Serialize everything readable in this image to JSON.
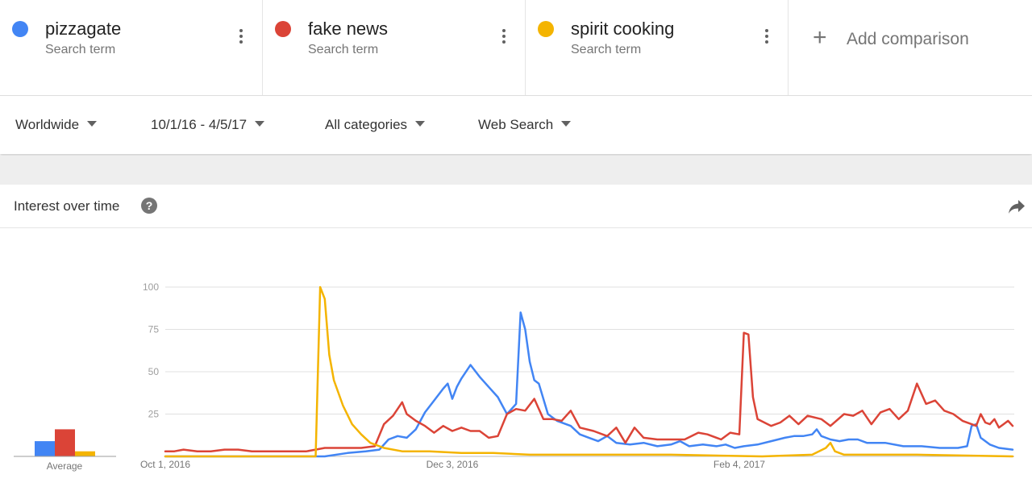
{
  "terms": [
    {
      "name": "pizzagate",
      "sub": "Search term",
      "color": "#4285f4"
    },
    {
      "name": "fake news",
      "sub": "Search term",
      "color": "#db4437"
    },
    {
      "name": "spirit cooking",
      "sub": "Search term",
      "color": "#f4b400"
    }
  ],
  "add_comparison": {
    "plus": "+",
    "label": "Add comparison"
  },
  "filters": {
    "region": "Worldwide",
    "date_range": "10/1/16 - 4/5/17",
    "category": "All categories",
    "search_type": "Web Search"
  },
  "card": {
    "title": "Interest over time",
    "help": "?"
  },
  "chart_data": {
    "type": "line",
    "y_ticks": [
      25,
      50,
      75,
      100
    ],
    "ylim": [
      0,
      100
    ],
    "x_tick_labels": [
      {
        "label": "Oct 1, 2016",
        "date": "2016-10-01"
      },
      {
        "label": "Dec 3, 2016",
        "date": "2016-12-03"
      },
      {
        "label": "Feb 4, 2017",
        "date": "2017-02-04"
      }
    ],
    "x_start": "2016-10-01",
    "x_end": "2017-04-05",
    "grid": true,
    "average": {
      "label": "Average",
      "values": [
        9,
        16,
        3
      ]
    },
    "series": [
      {
        "name": "pizzagate",
        "color": "#4285f4",
        "points": [
          [
            "2016-10-01",
            0
          ],
          [
            "2016-11-05",
            0
          ],
          [
            "2016-11-10",
            2
          ],
          [
            "2016-11-14",
            3
          ],
          [
            "2016-11-17",
            4
          ],
          [
            "2016-11-19",
            10
          ],
          [
            "2016-11-21",
            12
          ],
          [
            "2016-11-23",
            11
          ],
          [
            "2016-11-25",
            16
          ],
          [
            "2016-11-27",
            26
          ],
          [
            "2016-11-29",
            33
          ],
          [
            "2016-12-01",
            40
          ],
          [
            "2016-12-02",
            43
          ],
          [
            "2016-12-03",
            34
          ],
          [
            "2016-12-04",
            41
          ],
          [
            "2016-12-05",
            46
          ],
          [
            "2016-12-07",
            54
          ],
          [
            "2016-12-09",
            47
          ],
          [
            "2016-12-11",
            41
          ],
          [
            "2016-12-13",
            35
          ],
          [
            "2016-12-14",
            30
          ],
          [
            "2016-12-15",
            25
          ],
          [
            "2016-12-17",
            31
          ],
          [
            "2016-12-18",
            85
          ],
          [
            "2016-12-19",
            75
          ],
          [
            "2016-12-20",
            56
          ],
          [
            "2016-12-21",
            45
          ],
          [
            "2016-12-22",
            43
          ],
          [
            "2016-12-24",
            25
          ],
          [
            "2016-12-26",
            21
          ],
          [
            "2016-12-29",
            18
          ],
          [
            "2016-12-31",
            13
          ],
          [
            "2017-01-02",
            11
          ],
          [
            "2017-01-04",
            9
          ],
          [
            "2017-01-06",
            12
          ],
          [
            "2017-01-08",
            8
          ],
          [
            "2017-01-11",
            7
          ],
          [
            "2017-01-14",
            8
          ],
          [
            "2017-01-17",
            6
          ],
          [
            "2017-01-20",
            7
          ],
          [
            "2017-01-22",
            9
          ],
          [
            "2017-01-24",
            6
          ],
          [
            "2017-01-27",
            7
          ],
          [
            "2017-01-30",
            6
          ],
          [
            "2017-02-01",
            7
          ],
          [
            "2017-02-03",
            5
          ],
          [
            "2017-02-05",
            6
          ],
          [
            "2017-02-08",
            7
          ],
          [
            "2017-02-11",
            9
          ],
          [
            "2017-02-14",
            11
          ],
          [
            "2017-02-16",
            12
          ],
          [
            "2017-02-18",
            12
          ],
          [
            "2017-02-20",
            13
          ],
          [
            "2017-02-21",
            16
          ],
          [
            "2017-02-22",
            12
          ],
          [
            "2017-02-24",
            10
          ],
          [
            "2017-02-26",
            9
          ],
          [
            "2017-02-28",
            10
          ],
          [
            "2017-03-02",
            10
          ],
          [
            "2017-03-04",
            8
          ],
          [
            "2017-03-08",
            8
          ],
          [
            "2017-03-12",
            6
          ],
          [
            "2017-03-16",
            6
          ],
          [
            "2017-03-20",
            5
          ],
          [
            "2017-03-24",
            5
          ],
          [
            "2017-03-26",
            6
          ],
          [
            "2017-03-27",
            18
          ],
          [
            "2017-03-28",
            19
          ],
          [
            "2017-03-29",
            11
          ],
          [
            "2017-03-31",
            7
          ],
          [
            "2017-04-02",
            5
          ],
          [
            "2017-04-05",
            4
          ]
        ]
      },
      {
        "name": "fake news",
        "color": "#db4437",
        "points": [
          [
            "2016-10-01",
            3
          ],
          [
            "2016-10-03",
            3
          ],
          [
            "2016-10-05",
            4
          ],
          [
            "2016-10-08",
            3
          ],
          [
            "2016-10-11",
            3
          ],
          [
            "2016-10-14",
            4
          ],
          [
            "2016-10-17",
            4
          ],
          [
            "2016-10-20",
            3
          ],
          [
            "2016-10-24",
            3
          ],
          [
            "2016-10-28",
            3
          ],
          [
            "2016-11-01",
            3
          ],
          [
            "2016-11-05",
            5
          ],
          [
            "2016-11-09",
            5
          ],
          [
            "2016-11-13",
            5
          ],
          [
            "2016-11-16",
            6
          ],
          [
            "2016-11-18",
            19
          ],
          [
            "2016-11-20",
            24
          ],
          [
            "2016-11-22",
            32
          ],
          [
            "2016-11-23",
            25
          ],
          [
            "2016-11-25",
            21
          ],
          [
            "2016-11-27",
            18
          ],
          [
            "2016-11-29",
            14
          ],
          [
            "2016-12-01",
            18
          ],
          [
            "2016-12-03",
            15
          ],
          [
            "2016-12-05",
            17
          ],
          [
            "2016-12-07",
            15
          ],
          [
            "2016-12-09",
            15
          ],
          [
            "2016-12-11",
            11
          ],
          [
            "2016-12-13",
            12
          ],
          [
            "2016-12-15",
            25
          ],
          [
            "2016-12-17",
            28
          ],
          [
            "2016-12-19",
            27
          ],
          [
            "2016-12-21",
            34
          ],
          [
            "2016-12-23",
            22
          ],
          [
            "2016-12-25",
            22
          ],
          [
            "2016-12-27",
            21
          ],
          [
            "2016-12-29",
            27
          ],
          [
            "2016-12-31",
            17
          ],
          [
            "2017-01-03",
            15
          ],
          [
            "2017-01-06",
            12
          ],
          [
            "2017-01-08",
            17
          ],
          [
            "2017-01-10",
            8
          ],
          [
            "2017-01-12",
            17
          ],
          [
            "2017-01-14",
            11
          ],
          [
            "2017-01-17",
            10
          ],
          [
            "2017-01-20",
            10
          ],
          [
            "2017-01-23",
            10
          ],
          [
            "2017-01-26",
            14
          ],
          [
            "2017-01-28",
            13
          ],
          [
            "2017-01-31",
            10
          ],
          [
            "2017-02-02",
            14
          ],
          [
            "2017-02-04",
            13
          ],
          [
            "2017-02-05",
            73
          ],
          [
            "2017-02-06",
            72
          ],
          [
            "2017-02-07",
            35
          ],
          [
            "2017-02-08",
            22
          ],
          [
            "2017-02-11",
            18
          ],
          [
            "2017-02-13",
            20
          ],
          [
            "2017-02-15",
            24
          ],
          [
            "2017-02-17",
            19
          ],
          [
            "2017-02-19",
            24
          ],
          [
            "2017-02-22",
            22
          ],
          [
            "2017-02-24",
            18
          ],
          [
            "2017-02-27",
            25
          ],
          [
            "2017-03-01",
            24
          ],
          [
            "2017-03-03",
            27
          ],
          [
            "2017-03-05",
            19
          ],
          [
            "2017-03-07",
            26
          ],
          [
            "2017-03-09",
            28
          ],
          [
            "2017-03-11",
            22
          ],
          [
            "2017-03-13",
            27
          ],
          [
            "2017-03-15",
            43
          ],
          [
            "2017-03-17",
            31
          ],
          [
            "2017-03-19",
            33
          ],
          [
            "2017-03-21",
            27
          ],
          [
            "2017-03-23",
            25
          ],
          [
            "2017-03-25",
            21
          ],
          [
            "2017-03-27",
            19
          ],
          [
            "2017-03-28",
            18
          ],
          [
            "2017-03-29",
            25
          ],
          [
            "2017-03-30",
            20
          ],
          [
            "2017-03-31",
            19
          ],
          [
            "2017-04-01",
            22
          ],
          [
            "2017-04-02",
            17
          ],
          [
            "2017-04-03",
            19
          ],
          [
            "2017-04-04",
            21
          ],
          [
            "2017-04-05",
            18
          ]
        ]
      },
      {
        "name": "spirit cooking",
        "color": "#f4b400",
        "points": [
          [
            "2016-10-01",
            0
          ],
          [
            "2016-11-03",
            0
          ],
          [
            "2016-11-04",
            100
          ],
          [
            "2016-11-05",
            93
          ],
          [
            "2016-11-06",
            60
          ],
          [
            "2016-11-07",
            45
          ],
          [
            "2016-11-09",
            30
          ],
          [
            "2016-11-11",
            19
          ],
          [
            "2016-11-13",
            13
          ],
          [
            "2016-11-15",
            8
          ],
          [
            "2016-11-18",
            5
          ],
          [
            "2016-11-22",
            3
          ],
          [
            "2016-11-28",
            3
          ],
          [
            "2016-12-05",
            2
          ],
          [
            "2016-12-12",
            2
          ],
          [
            "2016-12-20",
            1
          ],
          [
            "2016-12-31",
            1
          ],
          [
            "2017-01-20",
            1
          ],
          [
            "2017-02-09",
            0
          ],
          [
            "2017-02-20",
            1
          ],
          [
            "2017-02-23",
            5
          ],
          [
            "2017-02-24",
            8
          ],
          [
            "2017-02-25",
            3
          ],
          [
            "2017-02-27",
            1
          ],
          [
            "2017-03-15",
            1
          ],
          [
            "2017-04-05",
            0
          ]
        ]
      }
    ]
  }
}
